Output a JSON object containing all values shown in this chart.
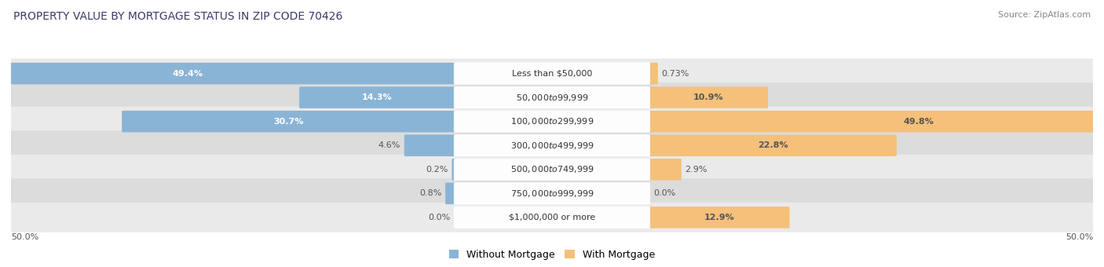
{
  "title": "PROPERTY VALUE BY MORTGAGE STATUS IN ZIP CODE 70426",
  "source": "Source: ZipAtlas.com",
  "categories": [
    "Less than $50,000",
    "$50,000 to $99,999",
    "$100,000 to $299,999",
    "$300,000 to $499,999",
    "$500,000 to $749,999",
    "$750,000 to $999,999",
    "$1,000,000 or more"
  ],
  "without_mortgage": [
    49.4,
    14.3,
    30.7,
    4.6,
    0.2,
    0.8,
    0.0
  ],
  "with_mortgage": [
    0.73,
    10.9,
    49.8,
    22.8,
    2.9,
    0.0,
    12.9
  ],
  "color_without": "#8AB4D6",
  "color_with": "#F5C07A",
  "color_row_light": "#EAEAEA",
  "color_row_dark": "#DCDCDC",
  "axis_limit": 50.0,
  "title_fontsize": 10,
  "source_fontsize": 8,
  "label_fontsize": 8,
  "category_fontsize": 8,
  "legend_fontsize": 9,
  "tick_fontsize": 8,
  "title_color": "#3A3A6A",
  "source_color": "#888888",
  "label_color_inside_wo": "#FFFFFF",
  "label_color_outside": "#555555",
  "label_color_inside_wm": "#555555"
}
